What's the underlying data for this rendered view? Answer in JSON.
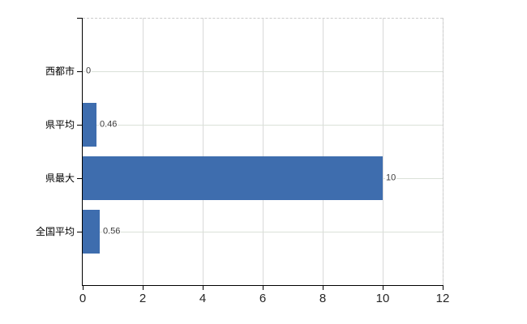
{
  "chart_data": {
    "type": "bar",
    "orientation": "horizontal",
    "title": "",
    "xlabel": "",
    "ylabel": "",
    "categories": [
      "西都市",
      "県平均",
      "県最大",
      "全国平均"
    ],
    "values": [
      0,
      0.46,
      10,
      0.56
    ],
    "value_labels": [
      "0",
      "0.46",
      "10",
      "0.56"
    ],
    "x_ticks": [
      0,
      2,
      4,
      6,
      8,
      10,
      12
    ],
    "xlim": [
      0,
      12
    ],
    "grid": true,
    "legend": false
  },
  "colors": {
    "background": "#ffffff",
    "bar": "#3e6dae",
    "axis": "#000000",
    "gridline_vertical": "#d9d9d9",
    "gridline_horizontal": "#dae1d8",
    "plot_border": "#cccccc",
    "tick_text": "#262626",
    "value_text": "#3a3a3a",
    "category_text": "#000000"
  }
}
